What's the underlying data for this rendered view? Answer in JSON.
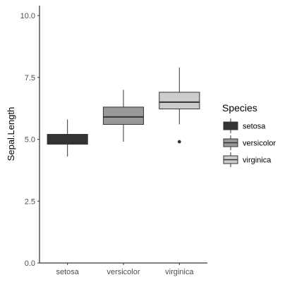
{
  "chart_data": {
    "type": "boxplot",
    "xlabel": "",
    "ylabel": "Sepal.Length",
    "ylim": [
      0,
      10.4
    ],
    "y_ticks": [
      "0.0",
      "2.5",
      "5.0",
      "7.5",
      "10.0"
    ],
    "grid": false,
    "legend_placement": "right",
    "legend_title": "Species",
    "categories": [
      "setosa",
      "versicolor",
      "virginica"
    ],
    "series": [
      {
        "name": "setosa",
        "color": "#333333",
        "min": 4.3,
        "q1": 4.8,
        "median": 5.0,
        "q3": 5.2,
        "max": 5.8,
        "outliers": []
      },
      {
        "name": "versicolor",
        "color": "#999999",
        "min": 4.9,
        "q1": 5.6,
        "median": 5.9,
        "q3": 6.3,
        "max": 7.0,
        "outliers": []
      },
      {
        "name": "virginica",
        "color": "#cccccc",
        "min": 5.6,
        "q1": 6.225,
        "median": 6.5,
        "q3": 6.9,
        "max": 7.9,
        "outliers": [
          4.9
        ]
      }
    ]
  }
}
